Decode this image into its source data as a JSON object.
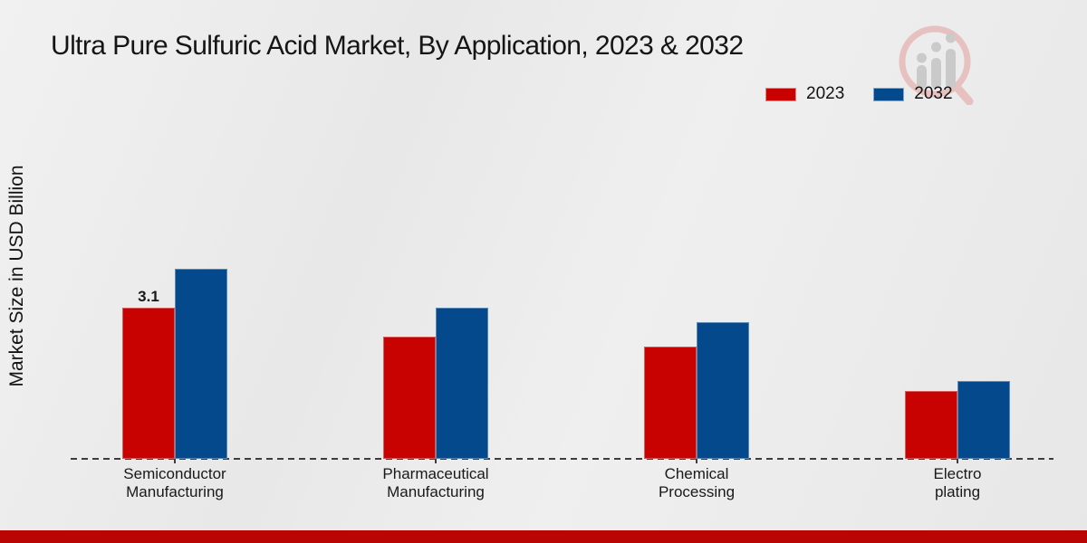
{
  "chart_data": {
    "type": "bar",
    "title": "Ultra Pure Sulfuric Acid Market, By Application, 2023 & 2032",
    "ylabel": "Market Size in USD Billion",
    "xlabel": "",
    "categories": [
      "Semiconductor Manufacturing",
      "Pharmaceutical Manufacturing",
      "Chemical Processing",
      "Electro plating"
    ],
    "series": [
      {
        "name": "2023",
        "color": "#c80101",
        "values": [
          3.1,
          2.5,
          2.3,
          1.4
        ]
      },
      {
        "name": "2032",
        "color": "#04498c",
        "values": [
          3.9,
          3.1,
          2.8,
          1.6
        ]
      }
    ],
    "annotations": [
      {
        "series": "2023",
        "category_index": 0,
        "text": "3.1"
      }
    ],
    "ylim": [
      0,
      4.5
    ],
    "grid": false,
    "baseline_style": "dashed",
    "legend_position": "top-right"
  },
  "branding": {
    "footer_bar_color": "#b90504",
    "watermark_icon": "magnifier-bar-chart-logo",
    "watermark_ring_color": "#e6bfbd",
    "watermark_bar_color": "#c9c9c9"
  }
}
